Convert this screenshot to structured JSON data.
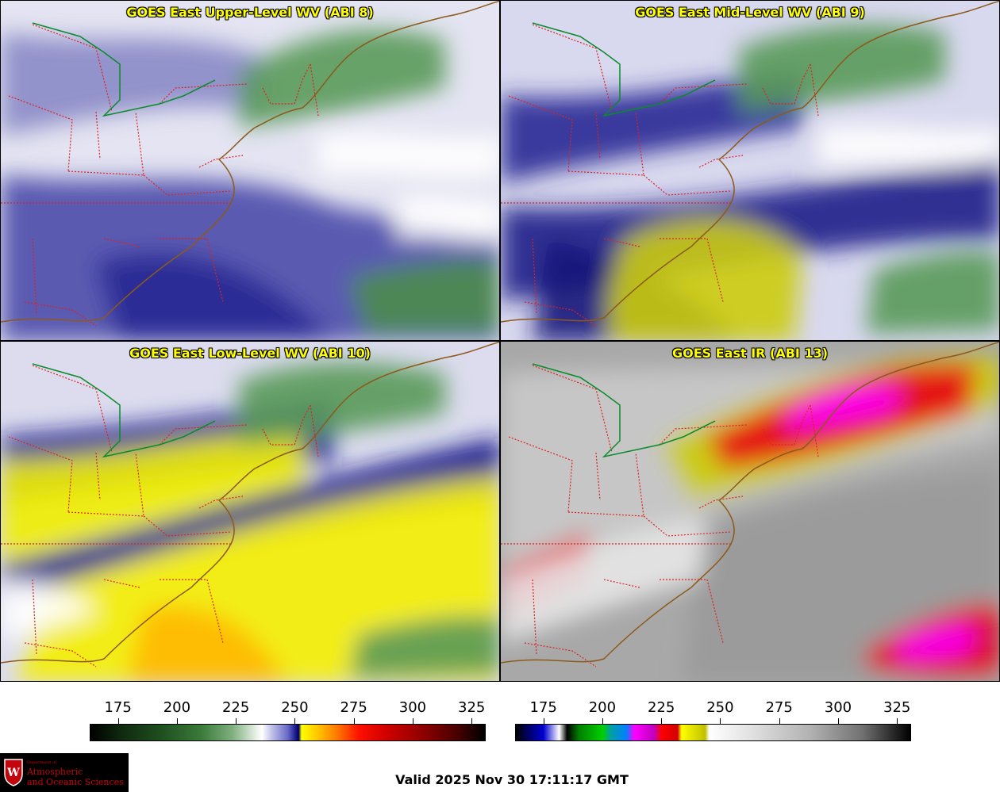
{
  "panels": [
    {
      "title": "GOES East Upper-Level WV (ABI 8)",
      "scheme": "wv_upper"
    },
    {
      "title": "GOES East Mid-Level WV (ABI 9)",
      "scheme": "wv_mid"
    },
    {
      "title": "GOES East Low-Level WV (ABI 10)",
      "scheme": "wv_low"
    },
    {
      "title": "GOES East IR (ABI 13)",
      "scheme": "ir"
    }
  ],
  "colorbars": {
    "left": {
      "ticks": [
        "175",
        "200",
        "225",
        "250",
        "275",
        "300",
        "325"
      ],
      "range": [
        163,
        331
      ],
      "scheme": "water-vapor"
    },
    "right": {
      "ticks": [
        "175",
        "200",
        "225",
        "250",
        "275",
        "300",
        "325"
      ],
      "range": [
        163,
        331
      ],
      "scheme": "infrared"
    }
  },
  "footer": {
    "valid": "Valid 2025 Nov 30 17:11:17 GMT"
  },
  "logo": {
    "dept": "Department of",
    "line1": "Atmospheric",
    "line2": "and Oceanic Sciences",
    "shield_letter": "W"
  },
  "colors": {
    "title_text": "#ffff00",
    "state_borders": "#e02020",
    "coastline": "#8b5a1a",
    "intl_border": "#0a8a2a",
    "wv_green": "#3d8a3d",
    "wv_blue": "#1a1a8a",
    "wv_yellow": "#f5f000",
    "ir_red": "#e8001a",
    "ir_magenta": "#ff00ff",
    "logo_red": "#c5050c"
  }
}
